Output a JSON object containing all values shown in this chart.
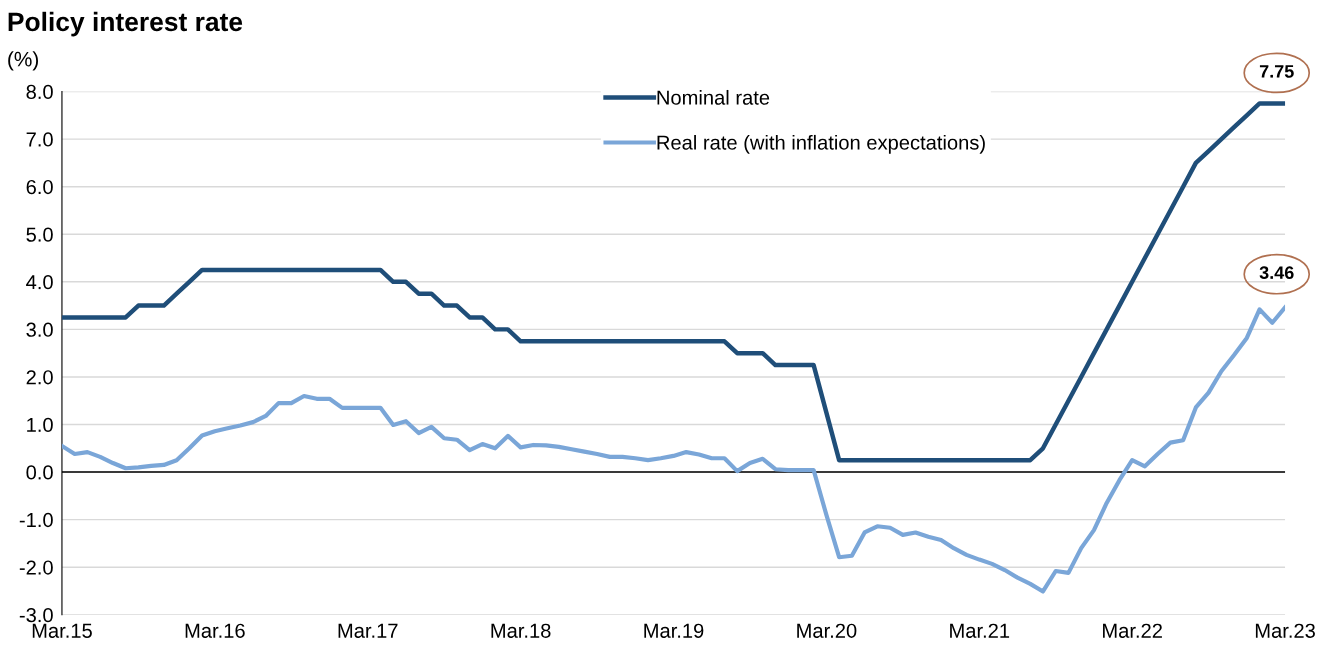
{
  "chart_data": {
    "type": "line",
    "title": "Policy interest rate",
    "ylabel": "(%)",
    "x": [
      "2015-03",
      "2015-04",
      "2015-05",
      "2015-06",
      "2015-07",
      "2015-08",
      "2015-09",
      "2015-10",
      "2015-11",
      "2015-12",
      "2016-01",
      "2016-02",
      "2016-03",
      "2016-04",
      "2016-05",
      "2016-06",
      "2016-07",
      "2016-08",
      "2016-09",
      "2016-10",
      "2016-11",
      "2016-12",
      "2017-01",
      "2017-02",
      "2017-03",
      "2017-04",
      "2017-05",
      "2017-06",
      "2017-07",
      "2017-08",
      "2017-09",
      "2017-10",
      "2017-11",
      "2017-12",
      "2018-01",
      "2018-02",
      "2018-03",
      "2018-04",
      "2018-05",
      "2018-06",
      "2018-07",
      "2018-08",
      "2018-09",
      "2018-10",
      "2018-11",
      "2018-12",
      "2019-01",
      "2019-02",
      "2019-03",
      "2019-04",
      "2019-05",
      "2019-06",
      "2019-07",
      "2019-08",
      "2019-09",
      "2019-10",
      "2019-11",
      "2019-12",
      "2020-01",
      "2020-02",
      "2020-03",
      "2020-04",
      "2020-05",
      "2020-06",
      "2020-07",
      "2020-08",
      "2020-09",
      "2020-10",
      "2020-11",
      "2020-12",
      "2021-01",
      "2021-02",
      "2021-03",
      "2021-04",
      "2021-05",
      "2021-06",
      "2021-07",
      "2021-08",
      "2021-09",
      "2021-10",
      "2021-11",
      "2021-12",
      "2022-01",
      "2022-02",
      "2022-03",
      "2022-04",
      "2022-05",
      "2022-06",
      "2022-07",
      "2022-08",
      "2022-09",
      "2022-10",
      "2022-11",
      "2022-12",
      "2023-01",
      "2023-02",
      "2023-03"
    ],
    "series": [
      {
        "name": "Nominal rate",
        "color": "#1f4e79",
        "line_style": "solid",
        "values": [
          3.25,
          3.25,
          3.25,
          3.25,
          3.25,
          3.25,
          3.5,
          3.5,
          3.5,
          3.75,
          4.0,
          4.25,
          4.25,
          4.25,
          4.25,
          4.25,
          4.25,
          4.25,
          4.25,
          4.25,
          4.25,
          4.25,
          4.25,
          4.25,
          4.25,
          4.25,
          4.0,
          4.0,
          3.75,
          3.75,
          3.5,
          3.5,
          3.25,
          3.25,
          3.0,
          3.0,
          2.75,
          2.75,
          2.75,
          2.75,
          2.75,
          2.75,
          2.75,
          2.75,
          2.75,
          2.75,
          2.75,
          2.75,
          2.75,
          2.75,
          2.75,
          2.75,
          2.75,
          2.5,
          2.5,
          2.5,
          2.25,
          2.25,
          2.25,
          2.25,
          1.25,
          0.25,
          0.25,
          0.25,
          0.25,
          0.25,
          0.25,
          0.25,
          0.25,
          0.25,
          0.25,
          0.25,
          0.25,
          0.25,
          0.25,
          0.25,
          0.25,
          0.5,
          1.0,
          1.5,
          2.0,
          2.5,
          3.0,
          3.5,
          4.0,
          4.5,
          5.0,
          5.5,
          6.0,
          6.5,
          6.75,
          7.0,
          7.25,
          7.5,
          7.75,
          7.75,
          7.75
        ]
      },
      {
        "name": "Real rate (with inflation expectations)",
        "color": "#7aa6d8",
        "line_style": "solid",
        "values": [
          0.55,
          0.38,
          0.42,
          0.32,
          0.19,
          0.08,
          0.1,
          0.13,
          0.15,
          0.25,
          0.5,
          0.77,
          0.86,
          0.92,
          0.98,
          1.05,
          1.18,
          1.45,
          1.45,
          1.6,
          1.54,
          1.54,
          1.35,
          1.35,
          1.35,
          1.35,
          0.99,
          1.07,
          0.82,
          0.95,
          0.71,
          0.68,
          0.46,
          0.59,
          0.5,
          0.76,
          0.52,
          0.57,
          0.56,
          0.53,
          0.48,
          0.43,
          0.38,
          0.32,
          0.32,
          0.29,
          0.25,
          0.29,
          0.34,
          0.42,
          0.37,
          0.29,
          0.29,
          0.02,
          0.19,
          0.28,
          0.06,
          0.04,
          0.04,
          0.04,
          -0.9,
          -1.79,
          -1.76,
          -1.27,
          -1.14,
          -1.17,
          -1.32,
          -1.27,
          -1.36,
          -1.43,
          -1.6,
          -1.74,
          -1.84,
          -1.93,
          -2.06,
          -2.22,
          -2.35,
          -2.51,
          -2.08,
          -2.12,
          -1.6,
          -1.22,
          -0.65,
          -0.17,
          0.25,
          0.12,
          0.38,
          0.62,
          0.67,
          1.36,
          1.67,
          2.12,
          2.46,
          2.82,
          3.42,
          3.14,
          3.46
        ]
      }
    ],
    "annotations": [
      {
        "text": "7.75",
        "x": "2023-03",
        "y": 7.75
      },
      {
        "text": "3.46",
        "x": "2023-03",
        "y": 3.46
      }
    ],
    "xlim": [
      "2015-03",
      "2023-03"
    ],
    "xticks": [
      {
        "value": "2015-03",
        "label": "Mar.15"
      },
      {
        "value": "2016-03",
        "label": "Mar.16"
      },
      {
        "value": "2017-03",
        "label": "Mar.17"
      },
      {
        "value": "2018-03",
        "label": "Mar.18"
      },
      {
        "value": "2019-03",
        "label": "Mar.19"
      },
      {
        "value": "2020-03",
        "label": "Mar.20"
      },
      {
        "value": "2021-03",
        "label": "Mar.21"
      },
      {
        "value": "2022-03",
        "label": "Mar.22"
      },
      {
        "value": "2023-03",
        "label": "Mar.23"
      }
    ],
    "ylim": [
      -3.0,
      8.0
    ],
    "yticks": [
      {
        "value": -3,
        "label": "-3.0"
      },
      {
        "value": -2,
        "label": "-2.0"
      },
      {
        "value": -1,
        "label": "-1.0"
      },
      {
        "value": 0,
        "label": "0.0"
      },
      {
        "value": 1,
        "label": "1.0"
      },
      {
        "value": 2,
        "label": "2.0"
      },
      {
        "value": 3,
        "label": "3.0"
      },
      {
        "value": 4,
        "label": "4.0"
      },
      {
        "value": 5,
        "label": "5.0"
      },
      {
        "value": 6,
        "label": "6.0"
      },
      {
        "value": 7,
        "label": "7.0"
      },
      {
        "value": 8,
        "label": "8.0"
      }
    ],
    "ref_lines": [
      {
        "axis": "y",
        "value": 0,
        "color": "#000000"
      }
    ],
    "grid": "y",
    "legend": "top",
    "marker": "none"
  }
}
